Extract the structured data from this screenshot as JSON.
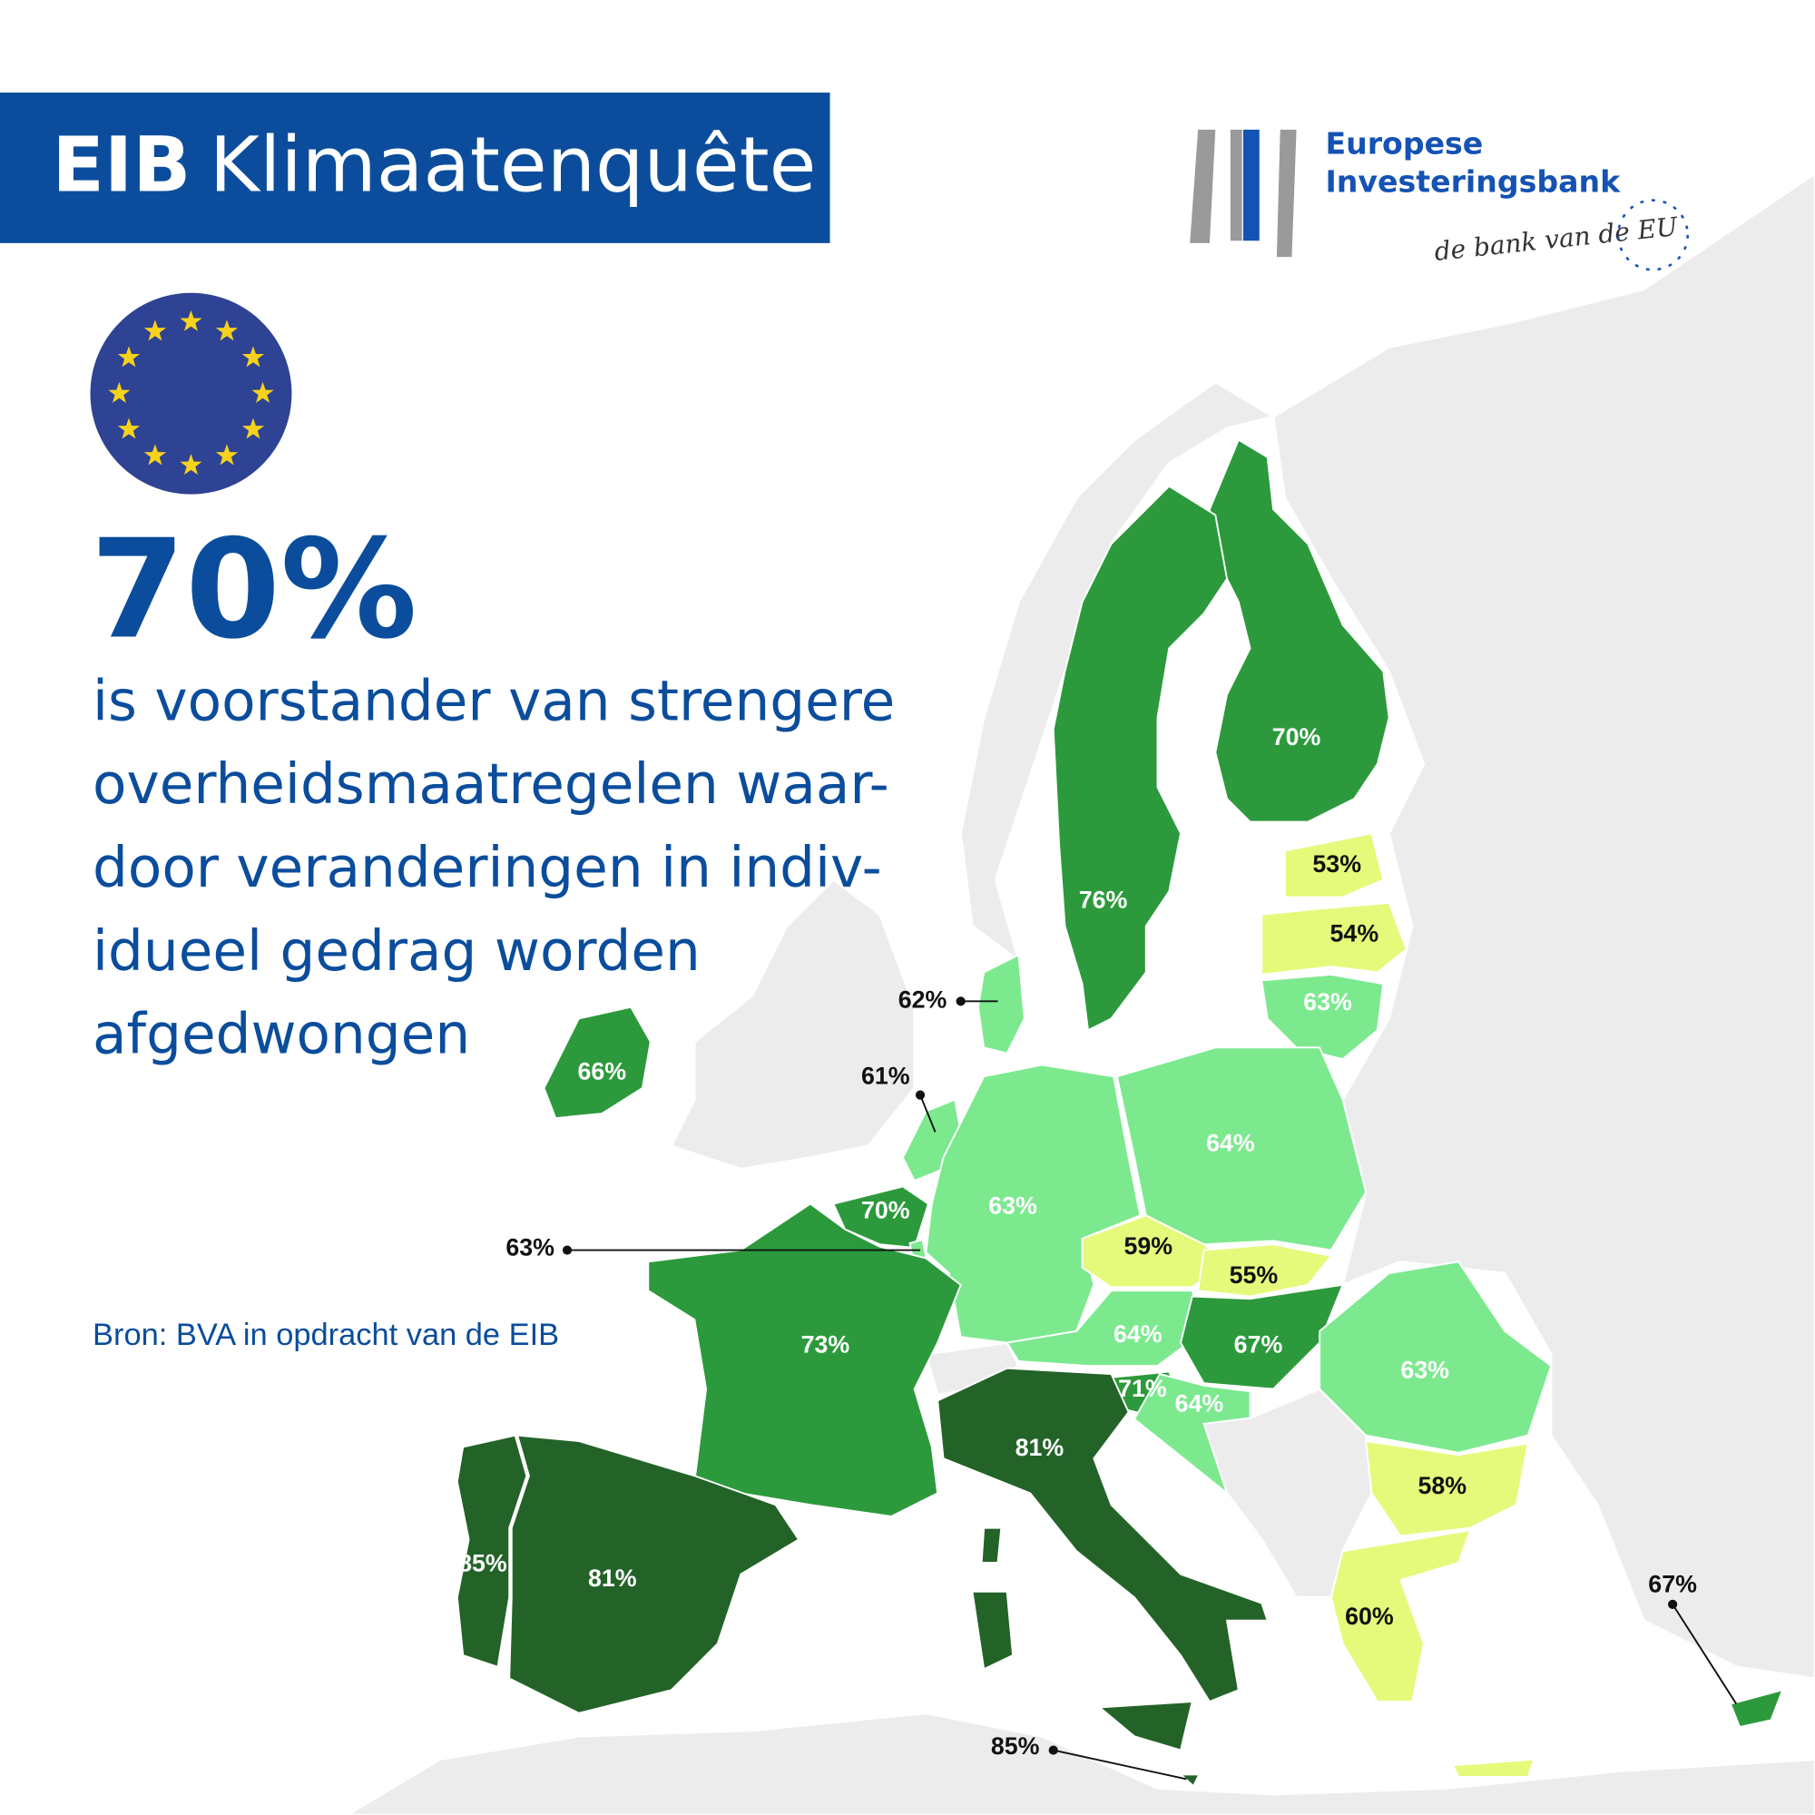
{
  "header": {
    "title_bold": "EIB",
    "title_rest": "Klimaatenquête"
  },
  "logo": {
    "line1": "Europese",
    "line2": "Investeringsbank",
    "tagline": "de bank van de EU"
  },
  "headline": {
    "value": "70%",
    "lines": [
      "is voorstander van strengere",
      "overheidsmaatregelen waar-",
      "door veranderingen in indiv-",
      "idueel gedrag worden",
      "afgedwongen"
    ]
  },
  "source": "Bron: BVA in opdracht van de EIB",
  "regions": [
    {
      "label": "70%",
      "color": "#2c9a3c"
    },
    {
      "label": "76%",
      "color": "#2c9a3c"
    },
    {
      "label": "53%",
      "color": "#e5fa7a"
    },
    {
      "label": "54%",
      "color": "#e5fa7a"
    },
    {
      "label": "63%",
      "color": "#7ce98f"
    },
    {
      "label": "62%",
      "color": "#7ce98f"
    },
    {
      "label": "66%",
      "color": "#2c9a3c"
    },
    {
      "label": "61%",
      "color": "#7ce98f"
    },
    {
      "label": "64%",
      "color": "#7ce98f"
    },
    {
      "label": "63%",
      "color": "#7ce98f"
    },
    {
      "label": "70%",
      "color": "#2c9a3c"
    },
    {
      "label": "63%",
      "color": "#7ce98f"
    },
    {
      "label": "59%",
      "color": "#e5fa7a"
    },
    {
      "label": "55%",
      "color": "#e5fa7a"
    },
    {
      "label": "73%",
      "color": "#2c9a3c"
    },
    {
      "label": "64%",
      "color": "#7ce98f"
    },
    {
      "label": "67%",
      "color": "#2c9a3c"
    },
    {
      "label": "63%",
      "color": "#7ce98f"
    },
    {
      "label": "71%",
      "color": "#2c9a3c"
    },
    {
      "label": "64%",
      "color": "#7ce98f"
    },
    {
      "label": "81%",
      "color": "#236328"
    },
    {
      "label": "58%",
      "color": "#e5fa7a"
    },
    {
      "label": "85%",
      "color": "#236328"
    },
    {
      "label": "81%",
      "color": "#236328"
    },
    {
      "label": "60%",
      "color": "#e5fa7a"
    },
    {
      "label": "67%",
      "color": "#2c9a3c"
    },
    {
      "label": "85%",
      "color": "#236328"
    }
  ]
}
